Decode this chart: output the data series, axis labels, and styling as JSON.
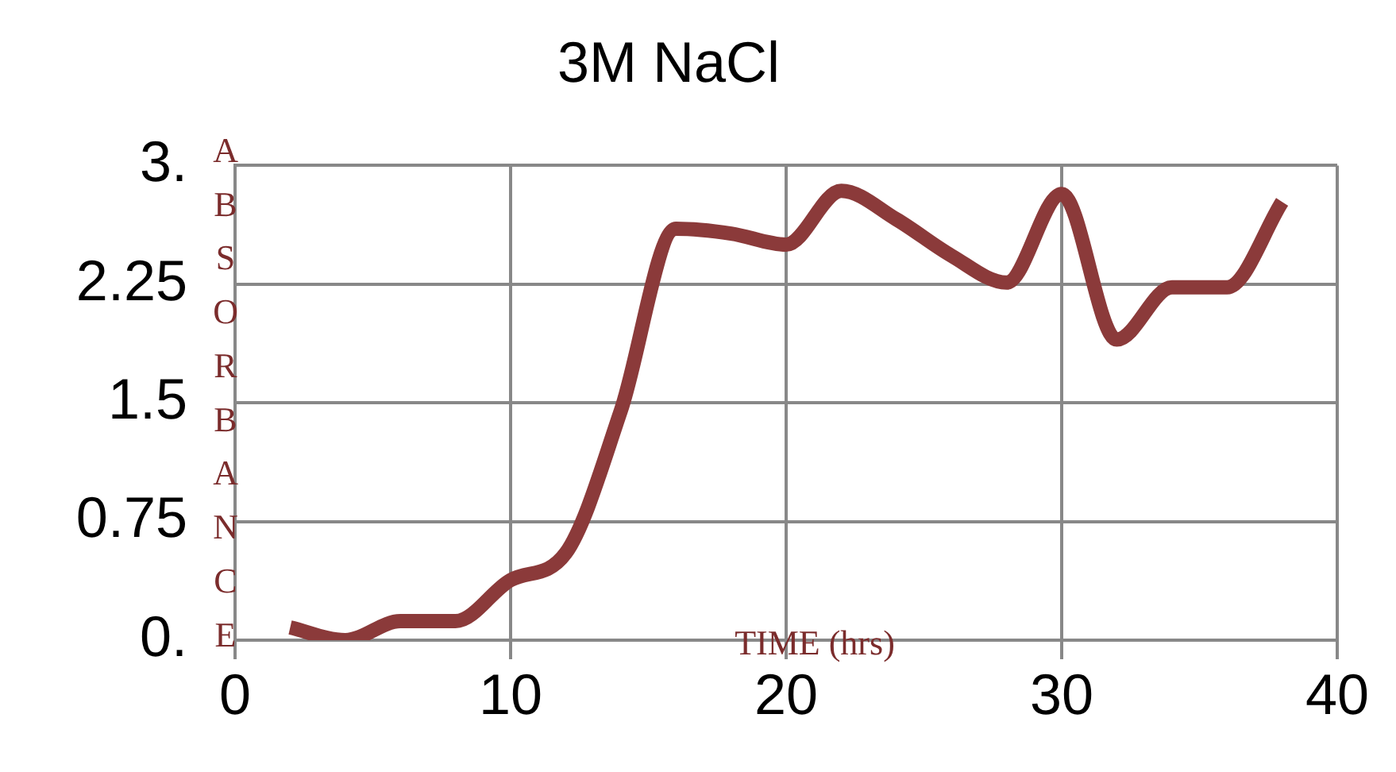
{
  "chart_data": {
    "type": "line",
    "title": "3M NaCl",
    "xlabel": "TIME (hrs)",
    "ylabel": "ABSORBANCE",
    "x": [
      2,
      4,
      6,
      8,
      10,
      12,
      14,
      16,
      18,
      20,
      22,
      24,
      26,
      28,
      30,
      32,
      34,
      36,
      38
    ],
    "series": [
      {
        "color": "#8b3a3a",
        "values": [
          0.08,
          0.0,
          0.12,
          0.12,
          0.38,
          0.55,
          1.45,
          2.6,
          2.57,
          2.5,
          2.84,
          2.66,
          2.43,
          2.26,
          2.82,
          1.9,
          2.23,
          2.23,
          2.77
        ]
      }
    ],
    "xlim": [
      0,
      40
    ],
    "xticks": [
      0,
      10,
      20,
      30,
      40
    ],
    "ylim": [
      0,
      3
    ],
    "yticks": [
      {
        "value": 0,
        "label": "0."
      },
      {
        "value": 0.75,
        "label": "0.75"
      },
      {
        "value": 1.5,
        "label": "1.5"
      },
      {
        "value": 2.25,
        "label": "2.25"
      },
      {
        "value": 3,
        "label": "3."
      }
    ],
    "grid": true,
    "legend": false,
    "marker": "none",
    "line_style": "solid"
  }
}
